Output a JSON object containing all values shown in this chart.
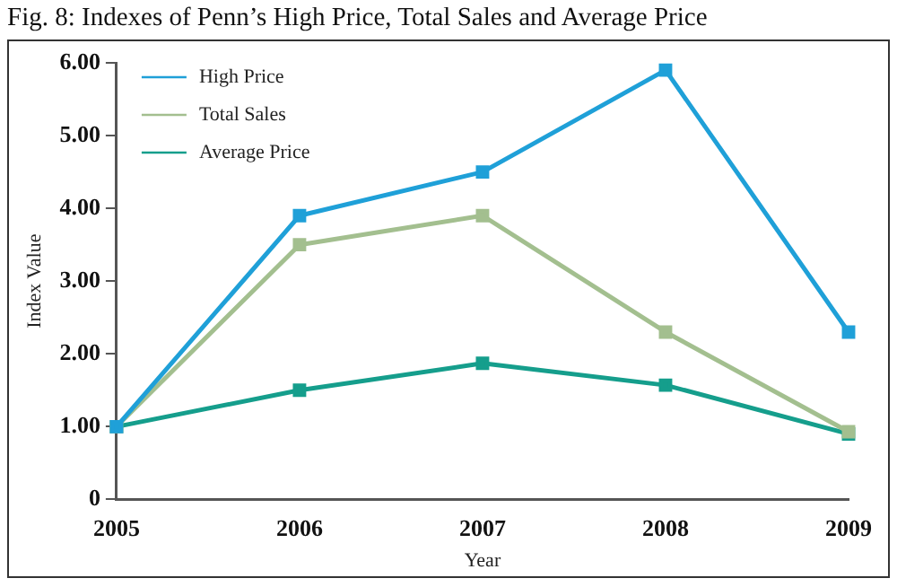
{
  "chart_data": {
    "type": "line",
    "title": "Fig. 8: Indexes of Penn’s High Price, Total Sales and Average Price",
    "xlabel": "Year",
    "ylabel": "Index Value",
    "categories": [
      "2005",
      "2006",
      "2007",
      "2008",
      "2009"
    ],
    "series": [
      {
        "name": "High Price",
        "color": "#1fa0d8",
        "values": [
          1.0,
          3.9,
          4.5,
          5.9,
          2.3
        ]
      },
      {
        "name": "Total Sales",
        "color": "#a3bf8f",
        "values": [
          1.0,
          3.5,
          3.9,
          2.3,
          0.93
        ]
      },
      {
        "name": "Average Price",
        "color": "#159e8c",
        "values": [
          1.0,
          1.5,
          1.87,
          1.57,
          0.9
        ]
      }
    ],
    "ylim": [
      0,
      6
    ],
    "yticks": [
      {
        "value": 0,
        "label": "0"
      },
      {
        "value": 1,
        "label": "1.00"
      },
      {
        "value": 2,
        "label": "2.00"
      },
      {
        "value": 3,
        "label": "3.00"
      },
      {
        "value": 4,
        "label": "4.00"
      },
      {
        "value": 5,
        "label": "5.00"
      },
      {
        "value": 6,
        "label": "6.00"
      }
    ],
    "grid": false,
    "legend": "top left",
    "marker": "square",
    "line_style": "solid"
  }
}
